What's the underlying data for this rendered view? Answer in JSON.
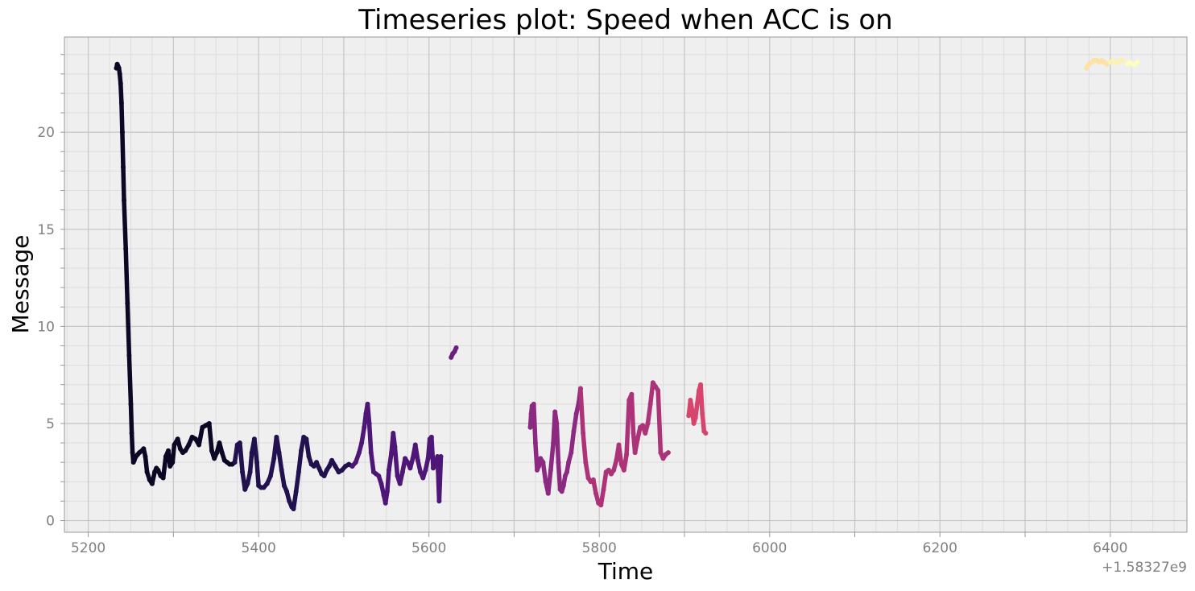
{
  "chart_data": {
    "type": "scatter",
    "title": "Timeseries plot: Speed when ACC is on",
    "xlabel": "Time",
    "ylabel": "Message",
    "x_offset_label": "+1.58327e9",
    "xlim": [
      5172,
      6490
    ],
    "ylim": [
      -0.6,
      24.9
    ],
    "xticks": [
      5200,
      5400,
      5600,
      5800,
      6000,
      6200,
      6400
    ],
    "xtick_labels": [
      "5200",
      "5400",
      "5600",
      "5800",
      "6000",
      "6200",
      "6400"
    ],
    "yticks": [
      0,
      5,
      10,
      15,
      20
    ],
    "ytick_labels": [
      "0",
      "5",
      "10",
      "15",
      "20"
    ],
    "grid": true,
    "colormap": "magma",
    "background": "#efefef",
    "major_grid_color": "#c8c8c8",
    "minor_grid_color": "#dddddd",
    "series": [
      {
        "color": "#0b0724",
        "x": [
          5233,
          5234,
          5235,
          5236,
          5237,
          5238,
          5239,
          5240,
          5241,
          5242,
          5244,
          5246,
          5248,
          5250,
          5251,
          5252,
          5253,
          5254,
          5256,
          5258,
          5260,
          5263,
          5265,
          5267,
          5269,
          5272,
          5275,
          5278,
          5280,
          5282,
          5285,
          5288,
          5291,
          5294,
          5296,
          5299,
          5301,
          5305,
          5308,
          5311,
          5314,
          5318,
          5322,
          5326,
          5330,
          5334,
          5338,
          5342,
          5345,
          5348,
          5351,
          5354,
          5357,
          5360,
          5363,
          5366,
          5369,
          5372
        ],
        "y": [
          23.3,
          23.5,
          23.4,
          23.3,
          23.0,
          22.5,
          21.5,
          20.0,
          18.2,
          16.5,
          14.0,
          11.2,
          8.5,
          6.0,
          4.5,
          3.5,
          3.0,
          3.1,
          3.3,
          3.4,
          3.5,
          3.6,
          3.7,
          3.3,
          2.5,
          2.1,
          1.9,
          2.5,
          2.7,
          2.6,
          2.3,
          2.2,
          3.3,
          3.6,
          2.8,
          3.0,
          3.9,
          4.2,
          3.7,
          3.5,
          3.6,
          3.9,
          4.3,
          4.2,
          3.9,
          4.8,
          4.9,
          5.0,
          3.6,
          3.2,
          3.5,
          4.0,
          3.5,
          3.1,
          3.0,
          2.9,
          2.9,
          3.0
        ]
      },
      {
        "color": "#21114e",
        "x": [
          5372,
          5375,
          5378,
          5381,
          5384,
          5387,
          5390,
          5392,
          5395,
          5398,
          5400,
          5403,
          5406,
          5410,
          5414,
          5418,
          5421,
          5424,
          5427,
          5430,
          5433,
          5436,
          5439,
          5441,
          5444,
          5447,
          5450,
          5453,
          5456,
          5459,
          5462,
          5465,
          5468,
          5471,
          5474,
          5477,
          5480,
          5483,
          5486,
          5490,
          5494,
          5498,
          5502,
          5506,
          5510
        ],
        "y": [
          3.0,
          3.9,
          4.0,
          2.5,
          1.6,
          1.9,
          2.5,
          3.5,
          4.2,
          3.0,
          1.8,
          1.7,
          1.7,
          1.9,
          2.3,
          3.2,
          4.3,
          3.5,
          2.6,
          1.8,
          1.5,
          1.0,
          0.7,
          0.6,
          1.5,
          2.5,
          3.6,
          4.3,
          4.2,
          3.3,
          2.9,
          2.8,
          3.0,
          2.7,
          2.4,
          2.3,
          2.6,
          2.8,
          3.1,
          2.8,
          2.5,
          2.6,
          2.8,
          2.9,
          2.8
        ]
      },
      {
        "color": "#4e1677",
        "x": [
          5510,
          5514,
          5518,
          5521,
          5524,
          5526,
          5528,
          5530,
          5532,
          5535,
          5538,
          5541,
          5544,
          5547,
          5549,
          5551,
          5553,
          5556,
          5558,
          5560,
          5563,
          5566,
          5569,
          5572,
          5575,
          5578,
          5581,
          5584,
          5587,
          5590,
          5593,
          5596,
          5599,
          5601,
          5603,
          5605,
          5608,
          5610,
          5612,
          5614
        ],
        "y": [
          2.8,
          3.0,
          3.5,
          4.0,
          4.8,
          5.5,
          6.0,
          5.0,
          3.5,
          2.5,
          2.4,
          2.3,
          1.9,
          1.3,
          0.9,
          1.5,
          2.6,
          3.5,
          4.5,
          3.8,
          2.3,
          1.9,
          2.5,
          3.2,
          3.0,
          2.7,
          3.2,
          3.9,
          3.1,
          2.5,
          2.2,
          2.6,
          3.2,
          4.2,
          4.3,
          2.7,
          2.9,
          3.3,
          1.0,
          3.3
        ]
      },
      {
        "color": "#6b1f80",
        "x": [
          5626,
          5628,
          5630,
          5632
        ],
        "y": [
          8.4,
          8.6,
          8.7,
          8.9
        ]
      },
      {
        "color": "#8c2981",
        "x": [
          5719,
          5720,
          5721,
          5723,
          5725,
          5727,
          5729,
          5731,
          5734,
          5737,
          5740,
          5743,
          5746,
          5748,
          5750,
          5752,
          5754,
          5756,
          5758,
          5760,
          5762,
          5764,
          5767,
          5770,
          5773,
          5776,
          5778
        ],
        "y": [
          4.8,
          5.5,
          5.9,
          6.0,
          4.0,
          2.6,
          2.8,
          3.2,
          3.0,
          2.0,
          1.4,
          2.6,
          4.0,
          5.6,
          5.0,
          3.0,
          1.6,
          1.5,
          1.8,
          2.3,
          2.5,
          3.0,
          3.5,
          4.6,
          5.5,
          6.1,
          6.8
        ]
      },
      {
        "color": "#ad3378",
        "x": [
          5778,
          5781,
          5784,
          5787,
          5790,
          5793,
          5796,
          5799,
          5802,
          5805,
          5808,
          5811,
          5814,
          5817,
          5820,
          5823,
          5826,
          5829,
          5832,
          5835,
          5838,
          5840,
          5842,
          5845,
          5848,
          5851,
          5854,
          5857,
          5860,
          5863,
          5866,
          5869,
          5872,
          5875,
          5878,
          5881
        ],
        "y": [
          6.8,
          4.5,
          3.0,
          2.2,
          2.0,
          2.1,
          1.4,
          0.9,
          0.8,
          1.6,
          2.5,
          2.6,
          2.4,
          2.6,
          3.1,
          3.9,
          2.9,
          2.6,
          3.4,
          6.2,
          6.5,
          4.5,
          3.5,
          4.2,
          4.8,
          4.9,
          4.5,
          5.0,
          6.0,
          7.1,
          6.9,
          6.7,
          3.5,
          3.2,
          3.4,
          3.5
        ]
      },
      {
        "color": "#d8456c",
        "x": [
          5905,
          5907,
          5909,
          5911,
          5913,
          5915,
          5917,
          5919,
          5921,
          5923,
          5925
        ],
        "y": [
          5.4,
          6.2,
          5.7,
          5.0,
          5.3,
          6.0,
          6.7,
          7.0,
          5.5,
          4.6,
          4.5
        ]
      },
      {
        "color": "#fce2a3",
        "x": [
          6372,
          6375,
          6378,
          6381,
          6384,
          6387,
          6390,
          6393,
          6396
        ],
        "y": [
          23.3,
          23.5,
          23.6,
          23.7,
          23.7,
          23.6,
          23.7,
          23.6,
          23.5
        ]
      },
      {
        "color": "#fcf0b5",
        "x": [
          6400,
          6403,
          6406,
          6409,
          6412,
          6415
        ],
        "y": [
          23.6,
          23.7,
          23.6,
          23.6,
          23.7,
          23.7
        ]
      },
      {
        "color": "#fcfdbf",
        "x": [
          6420,
          6423,
          6426,
          6429,
          6432
        ],
        "y": [
          23.5,
          23.6,
          23.5,
          23.5,
          23.6
        ]
      }
    ]
  }
}
